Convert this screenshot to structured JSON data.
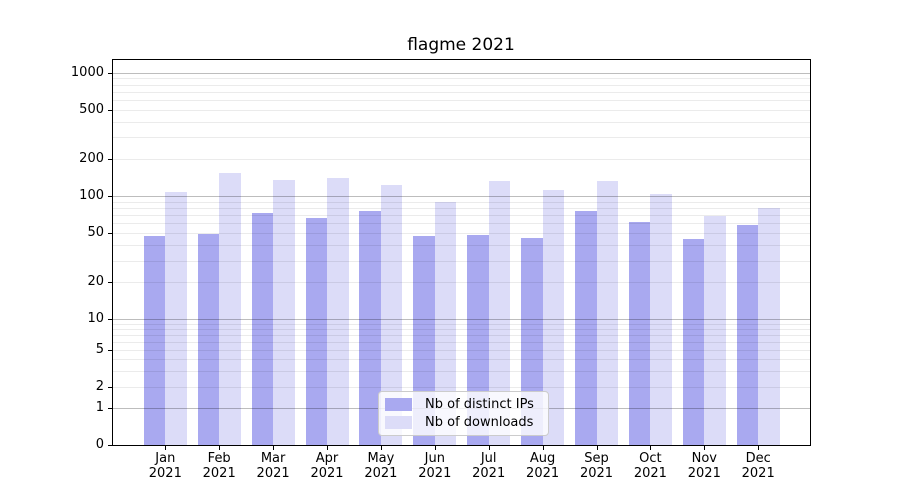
{
  "chart_data": {
    "type": "bar",
    "title": "flagme 2021",
    "categories": [
      "Jan 2021",
      "Feb 2021",
      "Mar 2021",
      "Apr 2021",
      "May 2021",
      "Jun 2021",
      "Jul 2021",
      "Aug 2021",
      "Sep 2021",
      "Oct 2021",
      "Nov 2021",
      "Dec 2021"
    ],
    "series": [
      {
        "name": "Nb of distinct IPs",
        "color": "#a9a9f0",
        "values": [
          47,
          49,
          73,
          66,
          75,
          47,
          48,
          46,
          75,
          62,
          45,
          58
        ]
      },
      {
        "name": "Nb of downloads",
        "color": "#dcdcf8",
        "values": [
          107,
          155,
          135,
          139,
          124,
          89,
          133,
          113,
          133,
          104,
          69,
          80
        ]
      }
    ],
    "xlabel": "",
    "ylabel": "",
    "yscale": "symlog",
    "yticks": [
      0,
      1,
      2,
      5,
      10,
      20,
      50,
      100,
      200,
      500,
      1000
    ],
    "ylim": [
      0,
      1270
    ],
    "grid": true,
    "legend_position": "lower center"
  }
}
